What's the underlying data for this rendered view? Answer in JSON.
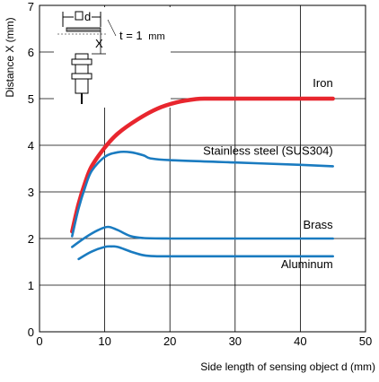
{
  "chart_data": {
    "type": "line",
    "title": "",
    "xlabel": "Side length of sensing object d (mm)",
    "ylabel": "Distance X (mm)",
    "xlim": [
      0,
      50
    ],
    "ylim": [
      0,
      7
    ],
    "x_ticks": [
      "0",
      "10",
      "20",
      "30",
      "40",
      "50"
    ],
    "y_ticks": [
      "0",
      "1",
      "2",
      "3",
      "4",
      "5",
      "6",
      "7"
    ],
    "grid": true,
    "legend": "none",
    "annotation": {
      "thickness_label": "t = 1",
      "thickness_unit": "mm",
      "diagram_labels": [
        "d",
        "X"
      ]
    },
    "series": [
      {
        "name": "Iron",
        "color": "#e8262e",
        "points": [
          [
            5,
            2.15
          ],
          [
            6,
            2.75
          ],
          [
            7,
            3.2
          ],
          [
            8,
            3.55
          ],
          [
            10,
            3.95
          ],
          [
            12,
            4.25
          ],
          [
            15,
            4.55
          ],
          [
            18,
            4.78
          ],
          [
            21,
            4.92
          ],
          [
            24,
            4.99
          ],
          [
            26,
            5.0
          ],
          [
            30,
            5.0
          ],
          [
            35,
            5.0
          ],
          [
            40,
            5.0
          ],
          [
            45,
            5.0
          ]
        ]
      },
      {
        "name": "Stainless steel (SUS304)",
        "color": "#1a7bc0",
        "points": [
          [
            5,
            2.05
          ],
          [
            6,
            2.65
          ],
          [
            7,
            3.1
          ],
          [
            8,
            3.45
          ],
          [
            10,
            3.75
          ],
          [
            12,
            3.85
          ],
          [
            14,
            3.85
          ],
          [
            16,
            3.78
          ],
          [
            17,
            3.72
          ],
          [
            20,
            3.68
          ],
          [
            30,
            3.63
          ],
          [
            40,
            3.58
          ],
          [
            45,
            3.55
          ]
        ]
      },
      {
        "name": "Brass",
        "color": "#1a7bc0",
        "points": [
          [
            5,
            1.82
          ],
          [
            7,
            2.02
          ],
          [
            9,
            2.18
          ],
          [
            10.5,
            2.25
          ],
          [
            12,
            2.18
          ],
          [
            14,
            2.05
          ],
          [
            16,
            2.01
          ],
          [
            20,
            2.0
          ],
          [
            30,
            2.0
          ],
          [
            45,
            2.0
          ]
        ]
      },
      {
        "name": "Aluminum",
        "color": "#1a7bc0",
        "points": [
          [
            6,
            1.56
          ],
          [
            8,
            1.72
          ],
          [
            10,
            1.82
          ],
          [
            11,
            1.83
          ],
          [
            12,
            1.82
          ],
          [
            14,
            1.72
          ],
          [
            16,
            1.64
          ],
          [
            18,
            1.62
          ],
          [
            20,
            1.62
          ],
          [
            30,
            1.62
          ],
          [
            45,
            1.62
          ]
        ]
      }
    ]
  }
}
